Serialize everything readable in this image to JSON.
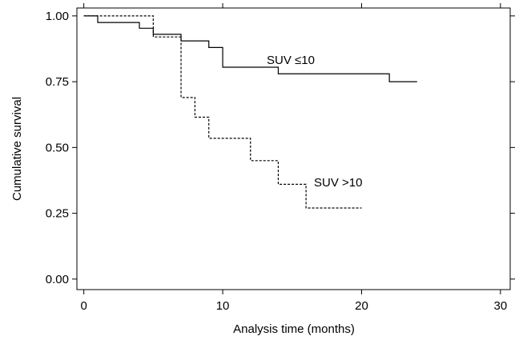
{
  "chart_data": {
    "type": "line",
    "title": "",
    "xlabel": "Analysis time (months)",
    "ylabel": "Cumulative survival",
    "xlim": [
      -0.5,
      30.7
    ],
    "ylim": [
      -0.04,
      1.03
    ],
    "xticks": [
      "0",
      "10",
      "20",
      "30"
    ],
    "yticks": [
      "0.00",
      "0.25",
      "0.50",
      "0.75",
      "1.00"
    ],
    "grid": false,
    "series": [
      {
        "name": "SUV ≤10",
        "style": "solid",
        "color": "#000000",
        "steps": [
          [
            0,
            1.0
          ],
          [
            1,
            0.975
          ],
          [
            4,
            0.953
          ],
          [
            5,
            0.93
          ],
          [
            7,
            0.905
          ],
          [
            9,
            0.88
          ],
          [
            10,
            0.805
          ],
          [
            14,
            0.78
          ],
          [
            22,
            0.75
          ],
          [
            24,
            0.75
          ]
        ]
      },
      {
        "name": "SUV >10",
        "style": "dashed",
        "color": "#000000",
        "steps": [
          [
            0,
            1.0
          ],
          [
            5,
            0.92
          ],
          [
            7,
            0.845
          ],
          [
            7,
            0.69
          ],
          [
            8,
            0.615
          ],
          [
            9,
            0.535
          ],
          [
            12,
            0.45
          ],
          [
            14,
            0.36
          ],
          [
            16,
            0.27
          ],
          [
            20,
            0.27
          ]
        ]
      }
    ]
  }
}
